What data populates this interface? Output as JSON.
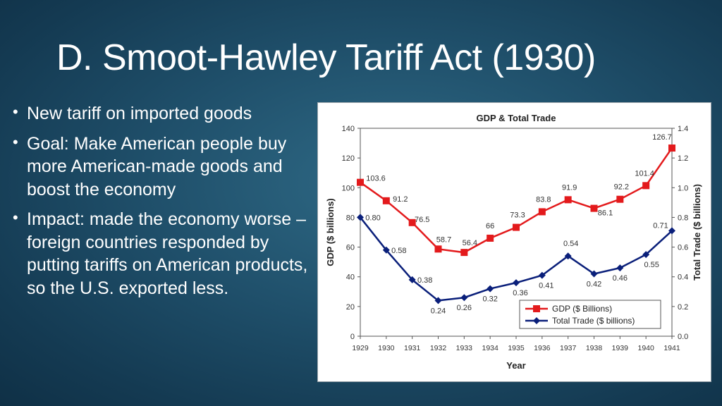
{
  "slide": {
    "title": "D. Smoot-Hawley Tariff Act (1930)",
    "bullets": [
      "New tariff on imported goods",
      "Goal: Make American people buy more American-made goods and boost the economy",
      "Impact: made the economy worse – foreign countries responded by putting tariffs on American products, so the U.S. exported less."
    ]
  },
  "chart_data": {
    "type": "line",
    "title": "GDP & Total Trade",
    "xlabel": "Year",
    "ylabel": "GDP ($ billions)",
    "y2label": "Total Trade ($ billions)",
    "x": [
      1929,
      1930,
      1931,
      1932,
      1933,
      1934,
      1935,
      1936,
      1937,
      1938,
      1939,
      1940,
      1941
    ],
    "ylim": [
      0,
      140
    ],
    "y2lim": [
      0,
      1.4
    ],
    "yticks": [
      "0",
      "20",
      "40",
      "60",
      "80",
      "100",
      "120",
      "140"
    ],
    "y2ticks": [
      "0.0",
      "0.2",
      "0.4",
      "0.6",
      "0.8",
      "1.0",
      "1.2",
      "1.4"
    ],
    "grid": false,
    "legend_position": "bottom-right",
    "series": [
      {
        "name": "GDP ($ Billions)",
        "axis": "left",
        "color": "#e31a1c",
        "marker": "square",
        "values": [
          103.6,
          91.2,
          76.5,
          58.7,
          56.4,
          66,
          73.3,
          83.8,
          91.9,
          86.1,
          92.2,
          101.4,
          126.7
        ],
        "labels": [
          "103.6",
          "91.2",
          "76.5",
          "58.7",
          "56.4",
          "66",
          "73.3",
          "83.8",
          "91.9",
          "86.1",
          "92.2",
          "101.4",
          "126.7"
        ]
      },
      {
        "name": "Total Trade ($ billions)",
        "axis": "right",
        "color": "#0a1f7a",
        "marker": "diamond",
        "values": [
          0.8,
          0.58,
          0.38,
          0.24,
          0.26,
          0.32,
          0.36,
          0.41,
          0.54,
          0.42,
          0.46,
          0.55,
          0.71
        ],
        "labels": [
          "0.80",
          "0.58",
          "0.38",
          "0.24",
          "0.26",
          "0.32",
          "0.36",
          "0.41",
          "0.54",
          "0.42",
          "0.46",
          "0.55",
          "0.71"
        ]
      }
    ]
  }
}
